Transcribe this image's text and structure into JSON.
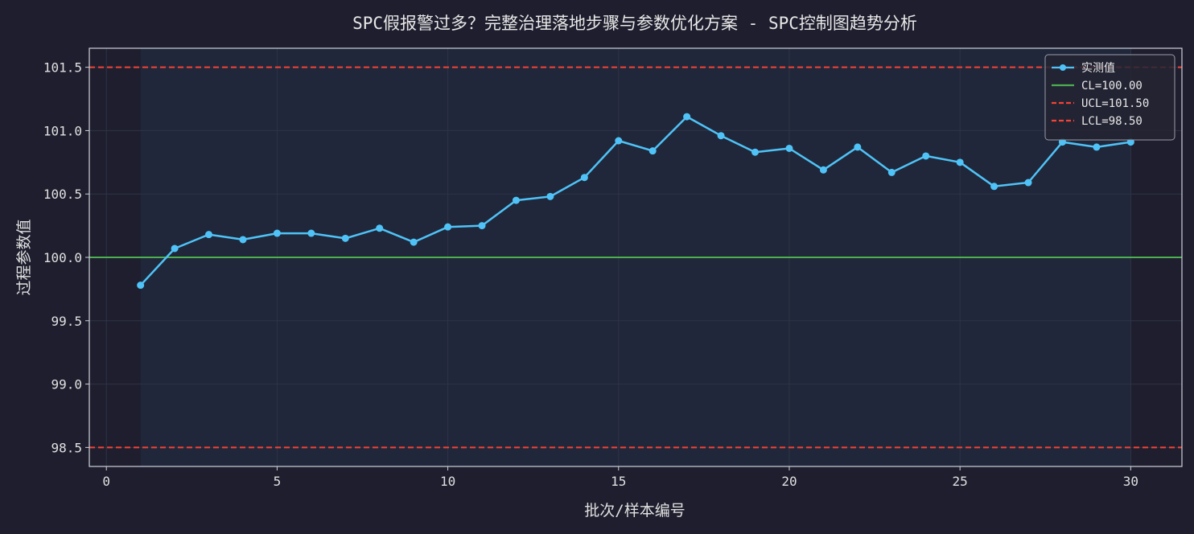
{
  "title": "SPC假报警过多？完整治理落地步骤与参数优化方案 - SPC控制图趋势分析",
  "chart_data": {
    "type": "line",
    "title": "SPC假报警过多？完整治理落地步骤与参数优化方案 - SPC控制图趋势分析",
    "xlabel": "批次/样本编号",
    "ylabel": "过程参数值",
    "xlim": [
      -0.5,
      31.5
    ],
    "ylim": [
      98.35,
      101.65
    ],
    "xticks": [
      0,
      5,
      10,
      15,
      20,
      25,
      30
    ],
    "xtick_labels": [
      "0",
      "5",
      "10",
      "15",
      "20",
      "25",
      "30"
    ],
    "yticks": [
      98.5,
      99.0,
      99.5,
      100.0,
      100.5,
      101.0,
      101.5
    ],
    "ytick_labels": [
      "98.5",
      "99.0",
      "99.5",
      "100.0",
      "100.5",
      "101.0",
      "101.5"
    ],
    "grid": true,
    "legend_position": "top-right",
    "shaded_x_range": [
      1,
      30
    ],
    "series": [
      {
        "name": "实测值",
        "color": "#4fc3f7",
        "x": [
          1,
          2,
          3,
          4,
          5,
          6,
          7,
          8,
          9,
          10,
          11,
          12,
          13,
          14,
          15,
          16,
          17,
          18,
          19,
          20,
          21,
          22,
          23,
          24,
          25,
          26,
          27,
          28,
          29,
          30
        ],
        "y": [
          99.78,
          100.07,
          100.18,
          100.14,
          100.19,
          100.19,
          100.15,
          100.23,
          100.12,
          100.24,
          100.25,
          100.45,
          100.48,
          100.63,
          100.92,
          100.84,
          101.11,
          100.96,
          100.83,
          100.86,
          100.69,
          100.87,
          100.67,
          100.8,
          100.75,
          100.56,
          100.59,
          100.91,
          100.87,
          100.91
        ]
      }
    ],
    "control_lines": [
      {
        "name": "CL=100.00",
        "value": 100.0,
        "color": "#4caf50",
        "style": "solid"
      },
      {
        "name": "UCL=101.50",
        "value": 101.5,
        "color": "#f44336",
        "style": "dashed"
      },
      {
        "name": "LCL=98.50",
        "value": 98.5,
        "color": "#f44336",
        "style": "dashed"
      }
    ],
    "colors": {
      "background": "#1e1e2e",
      "plot_area": "#1e1e2e",
      "shaded_band": "#20273a",
      "grid": "#2e3446",
      "axis": "#cfd2da",
      "text": "#e0e0e0",
      "legend_bg": "#252533"
    }
  }
}
